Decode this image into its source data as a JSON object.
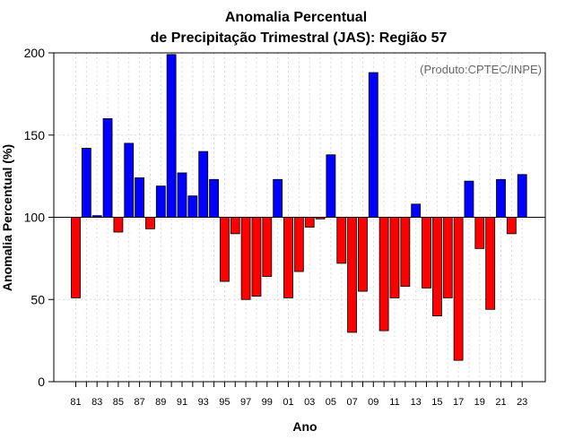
{
  "chart_data": {
    "type": "bar",
    "title": "Anomalia Percentual",
    "subtitle": "de Precipitação Trimestral (JAS): Região 57",
    "xlabel": "Ano",
    "ylabel": "Anomalia Percentual (%)",
    "annotation": "(Produto:CPTEC/INPE)",
    "ylim": [
      0,
      200
    ],
    "yticks": [
      0,
      50,
      100,
      150,
      200
    ],
    "baseline": 100,
    "grid": true,
    "colors": {
      "above": "#0000ff",
      "below": "#ff0000",
      "edge": "#000000",
      "grid": "#d9d9d9"
    },
    "xtick_labels": [
      "81",
      "83",
      "85",
      "87",
      "89",
      "91",
      "93",
      "95",
      "97",
      "99",
      "01",
      "03",
      "05",
      "07",
      "09",
      "11",
      "13",
      "15",
      "17",
      "19",
      "21",
      "23"
    ],
    "categories": [
      "1981",
      "1982",
      "1983",
      "1984",
      "1985",
      "1986",
      "1987",
      "1988",
      "1989",
      "1990",
      "1991",
      "1992",
      "1993",
      "1994",
      "1995",
      "1996",
      "1997",
      "1998",
      "1999",
      "2000",
      "2001",
      "2002",
      "2003",
      "2004",
      "2005",
      "2006",
      "2007",
      "2008",
      "2009",
      "2010",
      "2011",
      "2012",
      "2013",
      "2014",
      "2015",
      "2016",
      "2017",
      "2018",
      "2019",
      "2020",
      "2021",
      "2022",
      "2023"
    ],
    "values": [
      51,
      142,
      101,
      160,
      91,
      145,
      124,
      93,
      119,
      199,
      127,
      113,
      140,
      123,
      61,
      90,
      50,
      52,
      64,
      123,
      51,
      67,
      94,
      99,
      138,
      72,
      30,
      55,
      188,
      31,
      51,
      58,
      108,
      57,
      40,
      51,
      13,
      122,
      81,
      44,
      123,
      90,
      126
    ]
  }
}
